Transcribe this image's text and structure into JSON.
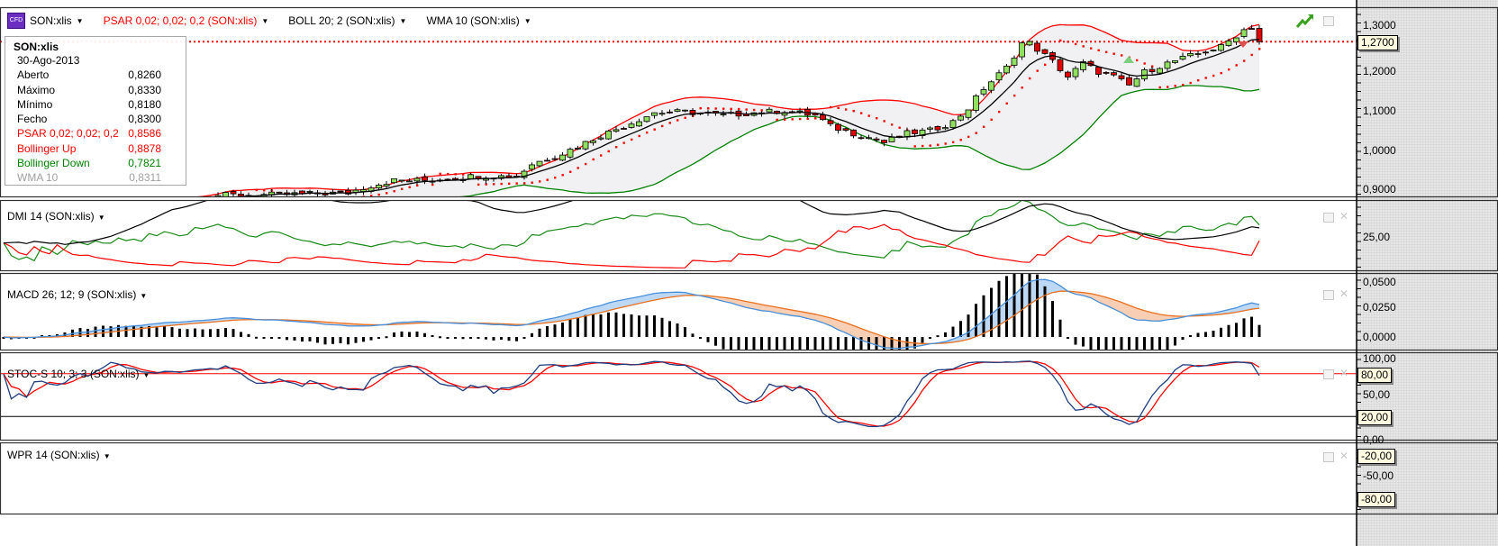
{
  "header": {
    "cfd_badge": "CFD",
    "symbol": "SON:xlis",
    "indicators": [
      {
        "label": "PSAR 0,02; 0,02; 0,2 (SON:xlis)",
        "color": "#ff0000"
      },
      {
        "label": "BOLL 20; 2 (SON:xlis)",
        "color": "#000000"
      },
      {
        "label": "WMA 10 (SON:xlis)",
        "color": "#000000"
      }
    ]
  },
  "legend": {
    "title": "SON:xlis",
    "date": "30-Ago-2013",
    "rows": [
      {
        "label": "Aberto",
        "value": "0,8260",
        "color": "#000000"
      },
      {
        "label": "Máximo",
        "value": "0,8330",
        "color": "#000000"
      },
      {
        "label": "Mínimo",
        "value": "0,8180",
        "color": "#000000"
      },
      {
        "label": "Fecho",
        "value": "0,8300",
        "color": "#000000"
      },
      {
        "label": "PSAR 0,02; 0,02; 0,2",
        "value": "0,8586",
        "color": "#ff0000"
      },
      {
        "label": "Bollinger Up",
        "value": "0,8878",
        "color": "#ff0000"
      },
      {
        "label": "Bollinger Down",
        "value": "0,7821",
        "color": "#008000"
      },
      {
        "label": "WMA 10",
        "value": "0,8311",
        "color": "#a0a0a0"
      }
    ]
  },
  "price_axis": {
    "labels": [
      "1,3000",
      "1,2000",
      "1,1000",
      "1,0000",
      "0,9000"
    ],
    "current_price": "1,2700"
  },
  "panels": {
    "dmi": {
      "title": "DMI 14 (SON:xlis)",
      "axis": [
        "25,00"
      ]
    },
    "macd": {
      "title": "MACD 26; 12; 9 (SON:xlis)",
      "axis": [
        "0,0500",
        "0,0250",
        "0,0000"
      ]
    },
    "stoc": {
      "title": "STOC-S 10; 3; 3 (SON:xlis)",
      "axis": [
        "100,00",
        "50,00"
      ],
      "tags": [
        "80,00",
        "20,00"
      ]
    },
    "wpr": {
      "title": "WPR 14 (SON:xlis)",
      "axis": [
        "0,00",
        "-50,00"
      ],
      "tags": [
        "-20,00",
        "-80,00"
      ]
    }
  },
  "colors": {
    "up": "#90e060",
    "down": "#e00000",
    "boll_up": "#ff0000",
    "boll_down": "#008000",
    "psar": "#ff0000",
    "macd": "#4a90d9",
    "signal": "#e87020",
    "stoch_k": "#1f3f7f",
    "stoch_d": "#ff0000"
  },
  "chart_data": {
    "type": "candlestick",
    "symbol": "SON:xlis",
    "ylim": [
      0.882,
      1.33
    ],
    "yticks": [
      0.9,
      1.0,
      1.1,
      1.2,
      1.3
    ],
    "last_close": 1.27,
    "bar_count": 165,
    "close_keypoints": [
      [
        0,
        0.8
      ],
      [
        7,
        0.815
      ],
      [
        12,
        0.83
      ],
      [
        18,
        0.85
      ],
      [
        24,
        0.87
      ],
      [
        27,
        0.885
      ],
      [
        35,
        0.886
      ],
      [
        45,
        0.891
      ],
      [
        47,
        0.904
      ],
      [
        51,
        0.922
      ],
      [
        55,
        0.922
      ],
      [
        62,
        0.934
      ],
      [
        67,
        0.932
      ],
      [
        69,
        0.963
      ],
      [
        73,
        0.99
      ],
      [
        78,
        1.035
      ],
      [
        81,
        1.058
      ],
      [
        85,
        1.092
      ],
      [
        89,
        1.094
      ],
      [
        94,
        1.085
      ],
      [
        98,
        1.092
      ],
      [
        102,
        1.097
      ],
      [
        106,
        1.085
      ],
      [
        108,
        1.058
      ],
      [
        111,
        1.04
      ],
      [
        114,
        1.024
      ],
      [
        115,
        1.017
      ],
      [
        118,
        1.04
      ],
      [
        121,
        1.047
      ],
      [
        124,
        1.069
      ],
      [
        126,
        1.103
      ],
      [
        128,
        1.153
      ],
      [
        131,
        1.205
      ],
      [
        133,
        1.266
      ],
      [
        134,
        1.266
      ],
      [
        137,
        1.221
      ],
      [
        139,
        1.182
      ],
      [
        141,
        1.216
      ],
      [
        143,
        1.194
      ],
      [
        145,
        1.182
      ],
      [
        147,
        1.16
      ],
      [
        149,
        1.194
      ],
      [
        152,
        1.216
      ],
      [
        155,
        1.234
      ],
      [
        159,
        1.257
      ],
      [
        162,
        1.3
      ],
      [
        163,
        1.307
      ],
      [
        164,
        1.27
      ]
    ],
    "indicators": {
      "psar": [
        0.02,
        0.02,
        0.2
      ],
      "bollinger": [
        20,
        2
      ],
      "wma": 10,
      "dmi": 14,
      "macd": [
        26,
        12,
        9
      ],
      "stoch": [
        10,
        3,
        3
      ],
      "wpr": 14
    },
    "reference_lines": {
      "stoch": [
        80,
        20
      ],
      "wpr": [
        -20,
        -80
      ]
    }
  }
}
